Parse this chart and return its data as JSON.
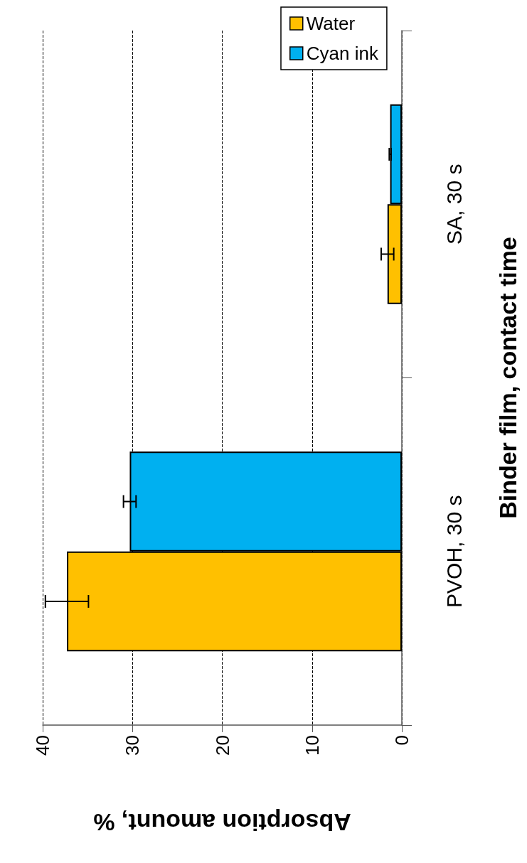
{
  "chart_data": {
    "type": "bar",
    "orientation": "horizontal",
    "xlabel": "Absorption amount, %",
    "ylabel": "Binder film, contact time",
    "categories": [
      "SA, 30 s",
      "PVOH, 30 s"
    ],
    "series": [
      {
        "name": "Water",
        "color": "#ffc000",
        "values": [
          1.6,
          37.3
        ],
        "errors": [
          0.7,
          2.4
        ]
      },
      {
        "name": "Cyan ink",
        "color": "#00b0f0",
        "values": [
          1.3,
          30.3
        ],
        "errors": [
          0.1,
          0.7
        ]
      }
    ],
    "xlim": [
      40,
      0
    ],
    "xticks": [
      40,
      30,
      20,
      10,
      0
    ],
    "grid": "x",
    "legend": "top right"
  }
}
